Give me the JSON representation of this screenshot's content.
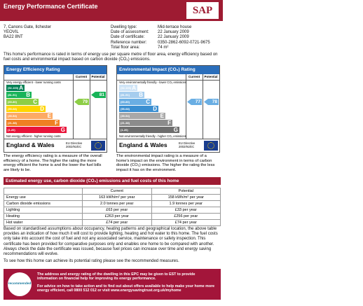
{
  "header": {
    "title": "Energy Performance Certificate",
    "logo": "SAP"
  },
  "address": [
    "7, Canons Gate, Ilchester",
    "YEOVIL",
    "BA22 8NT"
  ],
  "details": [
    {
      "label": "Dwelling type:",
      "value": "Mid-terrace house"
    },
    {
      "label": "Date of assessment:",
      "value": "22 January 2009"
    },
    {
      "label": "Date of certificate:",
      "value": "22 January 2009"
    },
    {
      "label": "Reference number:",
      "value": "0350-2862-6092-0721-9675"
    },
    {
      "label": "Total floor area:",
      "value": "74 m²"
    }
  ],
  "intro": "This home's performance is rated in terms of energy use per square metre of floor area, energy efficiency based on fuel costs and environmental impact based on carbon dioxide (CO₂) emissions.",
  "ratings": [
    {
      "title": "Energy Efficiency Rating",
      "col_current": "Current",
      "col_potential": "Potential",
      "top_note": "Very energy efficient - lower running costs",
      "bottom_note": "Not energy efficient - higher running costs",
      "bands": [
        {
          "range": "(92-100)",
          "letter": "A",
          "color": "#008054"
        },
        {
          "range": "(81-91)",
          "letter": "B",
          "color": "#19b459"
        },
        {
          "range": "(69-80)",
          "letter": "C",
          "color": "#8dce46"
        },
        {
          "range": "(55-68)",
          "letter": "D",
          "color": "#ffd500"
        },
        {
          "range": "(39-54)",
          "letter": "E",
          "color": "#fcaa65"
        },
        {
          "range": "(21-38)",
          "letter": "F",
          "color": "#ef8023"
        },
        {
          "range": "(1-20)",
          "letter": "G",
          "color": "#e9153b"
        }
      ],
      "current": 79,
      "potential": 81,
      "region": "England & Wales",
      "directive": "EU Directive 2002/91/EC",
      "description": "The energy efficiency rating is a measure of the overall efficiency of a home. The higher the rating the more energy efficient the home is and the lower the fuel bills are likely to be."
    },
    {
      "title": "Environmental Impact (CO₂) Rating",
      "col_current": "Current",
      "col_potential": "Potential",
      "top_note": "Very environmentally friendly - lower CO₂ emissions",
      "bottom_note": "Not environmentally friendly - higher CO₂ emissions",
      "bands": [
        {
          "range": "(92-100)",
          "letter": "A",
          "color": "#cfe4f6"
        },
        {
          "range": "(81-91)",
          "letter": "B",
          "color": "#a6cdee"
        },
        {
          "range": "(69-80)",
          "letter": "C",
          "color": "#6aaee3"
        },
        {
          "range": "(55-68)",
          "letter": "D",
          "color": "#3b8fd1"
        },
        {
          "range": "(39-54)",
          "letter": "E",
          "color": "#a8a8a8"
        },
        {
          "range": "(21-38)",
          "letter": "F",
          "color": "#8c8c8c"
        },
        {
          "range": "(1-20)",
          "letter": "G",
          "color": "#6e6e6e"
        }
      ],
      "current": 77,
      "potential": 78,
      "region": "England & Wales",
      "directive": "EU Directive 2002/91/EC",
      "description": "The environmental impact rating is a measure of a home's impact on the environment in terms of carbon dioxide (CO₂) emissions. The higher the rating the less impact it has on the environment."
    }
  ],
  "table": {
    "title": "Estimated energy use, carbon dioxide (CO₂) emissions and fuel costs of this home",
    "columns": [
      "Current",
      "Potential"
    ],
    "rows": [
      [
        "Energy use",
        "163 kWh/m² per year",
        "158 kWh/m² per year"
      ],
      [
        "Carbon dioxide emissions",
        "2.0 tonnes per year",
        "1.9 tonnes per year"
      ],
      [
        "Lighting",
        "£63 per year",
        "£33 per year"
      ],
      [
        "Heating",
        "£263 per year",
        "£256 per year"
      ],
      [
        "Hot water",
        "£74 per year",
        "£74 per year"
      ]
    ]
  },
  "notes": [
    "Based on standardised assumptions about occupancy, heating patterns and geographical location, the above table provides an indication of how much it will cost to provide lighting, heating and hot water to this home. The fuel costs only take into account the cost of fuel and not any associated service, maintenance or safety inspection. This certificate has been provided for comparative purposes only and enables one home to be compared with another. Always check the date the certificate was issued, because fuel prices can increase over time and energy saving recommendations will evolve.",
    "To see how this home can achieve its potential rating please see the recommended measures."
  ],
  "footer": {
    "lines": [
      "The address and energy rating of the dwelling in this EPC may be given to EST to provide information on financial help for improving its energy performance.",
      "For advice on how to take action and to find out about offers available to help make your home more energy efficient, call 0800 512 012 or visit www.energysavingtrust.org.uk/myhome"
    ],
    "logo": "recommended"
  }
}
